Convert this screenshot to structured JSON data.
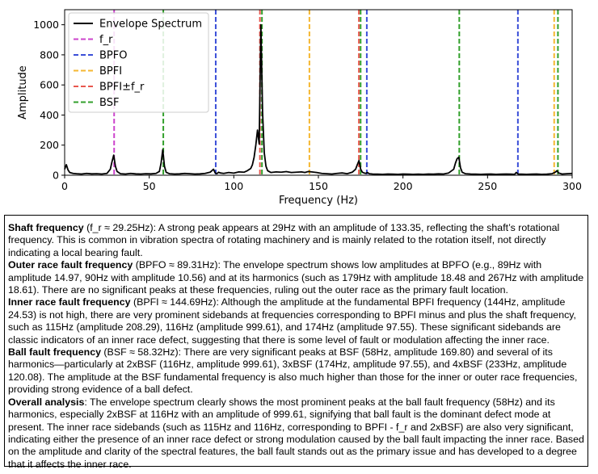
{
  "chart_data": {
    "type": "line",
    "title": "",
    "xlabel": "Frequency (Hz)",
    "ylabel": "Amplitude",
    "xlim": [
      0,
      300
    ],
    "ylim": [
      0,
      1100
    ],
    "xticks": [
      0,
      50,
      100,
      150,
      200,
      250,
      300
    ],
    "yticks": [
      0,
      200,
      400,
      600,
      800,
      1000
    ],
    "grid": false,
    "legend_position": "top-left",
    "series": [
      {
        "name": "Envelope Spectrum",
        "color": "#000000",
        "x": [
          0,
          1,
          2,
          3,
          5,
          7,
          10,
          13,
          16,
          19,
          22,
          25,
          27,
          28,
          29,
          30,
          31,
          33,
          36,
          39,
          42,
          45,
          48,
          51,
          54,
          56,
          57,
          58,
          59,
          60,
          62,
          65,
          68,
          71,
          74,
          77,
          80,
          83,
          86,
          88,
          89,
          90,
          91,
          92,
          94,
          97,
          100,
          103,
          106,
          108,
          110,
          111,
          112,
          113,
          114,
          115,
          116,
          117,
          118,
          119,
          120,
          122,
          125,
          128,
          131,
          134,
          137,
          140,
          142,
          144,
          146,
          149,
          152,
          155,
          158,
          161,
          164,
          167,
          170,
          172,
          173,
          174,
          175,
          176,
          177,
          178,
          179,
          180,
          182,
          185,
          188,
          191,
          194,
          197,
          200,
          203,
          206,
          209,
          212,
          215,
          218,
          221,
          224,
          227,
          230,
          231,
          232,
          233,
          234,
          235,
          237,
          240,
          243,
          246,
          249,
          252,
          255,
          258,
          261,
          264,
          266,
          267,
          268,
          270,
          273,
          276,
          279,
          282,
          285,
          288,
          290,
          291,
          292,
          294,
          297,
          300
        ],
        "y": [
          40,
          70,
          35,
          18,
          12,
          10,
          8,
          12,
          9,
          10,
          8,
          12,
          40,
          90,
          133.35,
          60,
          25,
          10,
          8,
          12,
          9,
          8,
          10,
          9,
          12,
          25,
          80,
          169.8,
          60,
          20,
          10,
          8,
          9,
          12,
          10,
          8,
          9,
          12,
          20,
          40,
          14.97,
          10.56,
          20,
          15,
          12,
          18,
          14,
          22,
          20,
          30,
          45,
          70,
          120,
          200,
          300,
          208.29,
          999.61,
          420,
          150,
          60,
          30,
          18,
          22,
          20,
          24,
          18,
          20,
          22,
          18,
          24.53,
          22,
          18,
          12,
          10,
          8,
          12,
          15,
          10,
          20,
          40,
          70,
          97.55,
          40,
          20,
          15,
          12,
          18.48,
          10,
          8,
          7,
          6,
          8,
          7,
          6,
          8,
          7,
          6,
          7,
          6,
          8,
          7,
          9,
          8,
          15,
          40,
          80,
          110,
          120.08,
          50,
          20,
          10,
          8,
          7,
          6,
          7,
          8,
          6,
          7,
          8,
          7,
          6,
          18.61,
          8,
          7,
          6,
          7,
          8,
          6,
          7,
          10,
          20,
          30,
          15,
          8,
          10,
          12
        ]
      }
    ],
    "vlines": [
      {
        "name": "f_r",
        "color": "#cc44cc",
        "x": [
          29.25
        ]
      },
      {
        "name": "BPFO",
        "color": "#3b4fd8",
        "x": [
          89.31,
          178.62,
          267.93
        ]
      },
      {
        "name": "BPFI",
        "color": "#f5b731",
        "x": [
          144.69,
          289.38
        ]
      },
      {
        "name": "BPFI±f_r",
        "color": "#e8574e",
        "x": [
          115.44,
          173.94
        ]
      },
      {
        "name": "BSF",
        "color": "#33a02c",
        "x": [
          58.32,
          116.64,
          174.96,
          233.28,
          291.6
        ]
      }
    ]
  },
  "analysis": {
    "shaft": {
      "heading": "Shaft frequency",
      "text": " (f_r ≈ 29.25Hz): A strong peak appears at 29Hz with an amplitude of 133.35, reflecting the shaft’s rotational frequency. This is common in vibration spectra of rotating machinery and is mainly related to the rotation itself, not directly indicating a local bearing fault."
    },
    "outer": {
      "heading": "Outer race fault frequency",
      "text": " (BPFO ≈ 89.31Hz): The envelope spectrum shows low amplitudes at BPFO (e.g., 89Hz with amplitude 14.97, 90Hz with amplitude 10.56) and at its harmonics (such as 179Hz with amplitude 18.48 and 267Hz with amplitude 18.61). There are no significant peaks at these frequencies, ruling out the outer race as the primary fault location."
    },
    "inner": {
      "heading": "Inner race fault frequency",
      "text": " (BPFI ≈ 144.69Hz): Although the amplitude at the fundamental BPFI frequency (144Hz, amplitude 24.53) is not high, there are very prominent sidebands at frequencies corresponding to BPFI minus and plus the shaft frequency, such as 115Hz (amplitude 208.29), 116Hz (amplitude 999.61), and 174Hz (amplitude 97.55). These significant sidebands are classic indicators of an inner race defect, suggesting that there is some level of fault or modulation affecting the inner race."
    },
    "ball": {
      "heading": "Ball fault frequency",
      "text": " (BSF ≈ 58.32Hz): There are very significant peaks at BSF (58Hz, amplitude 169.80) and several of its harmonics—particularly at 2xBSF (116Hz, amplitude 999.61), 3xBSF (174Hz, amplitude 97.55), and 4xBSF (233Hz, amplitude 120.08). The amplitude at the BSF fundamental frequency is also much higher than those for the inner or outer race frequencies, providing strong evidence of a ball defect."
    },
    "overall": {
      "heading": "Overall analysis",
      "text": ": The envelope spectrum clearly shows the most prominent peaks at the ball fault frequency (58Hz) and its harmonics, especially 2xBSF at 116Hz with an amplitude of 999.61, signifying that ball fault is the dominant defect mode at present. The inner race sidebands (such as 115Hz and 116Hz, corresponding to BPFI - f_r and 2xBSF) are also very significant, indicating either the presence of an inner race defect or strong modulation caused by the ball fault impacting the inner race. Based on the amplitude and clarity of the spectral features, the ball fault stands out as the primary issue and has developed to a degree that it affects the inner race."
    }
  }
}
